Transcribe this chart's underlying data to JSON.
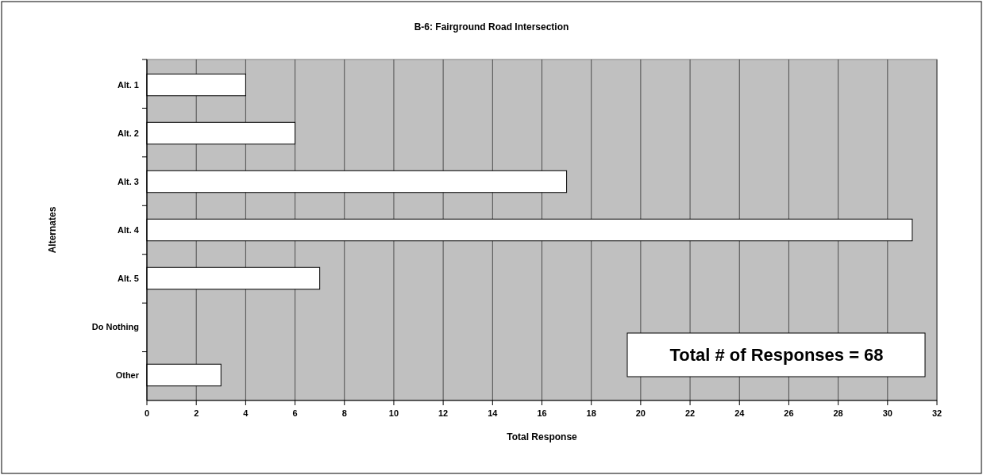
{
  "chart_data": {
    "type": "bar",
    "orientation": "horizontal",
    "title": "B-6: Fairground Road Intersection",
    "xlabel": "Total Response",
    "ylabel": "Alternates",
    "categories": [
      "Alt. 1",
      "Alt. 2",
      "Alt. 3",
      "Alt. 4",
      "Alt. 5",
      "Do Nothing",
      "Other"
    ],
    "values": [
      4,
      6,
      17,
      31,
      7,
      0,
      3
    ],
    "color": "#ffffff",
    "xlim": [
      0,
      32
    ],
    "xticks": [
      0,
      2,
      4,
      6,
      8,
      10,
      12,
      14,
      16,
      18,
      20,
      22,
      24,
      26,
      28,
      30,
      32
    ],
    "grid": "x",
    "annotations": [
      "Total # of Responses = 68"
    ]
  }
}
